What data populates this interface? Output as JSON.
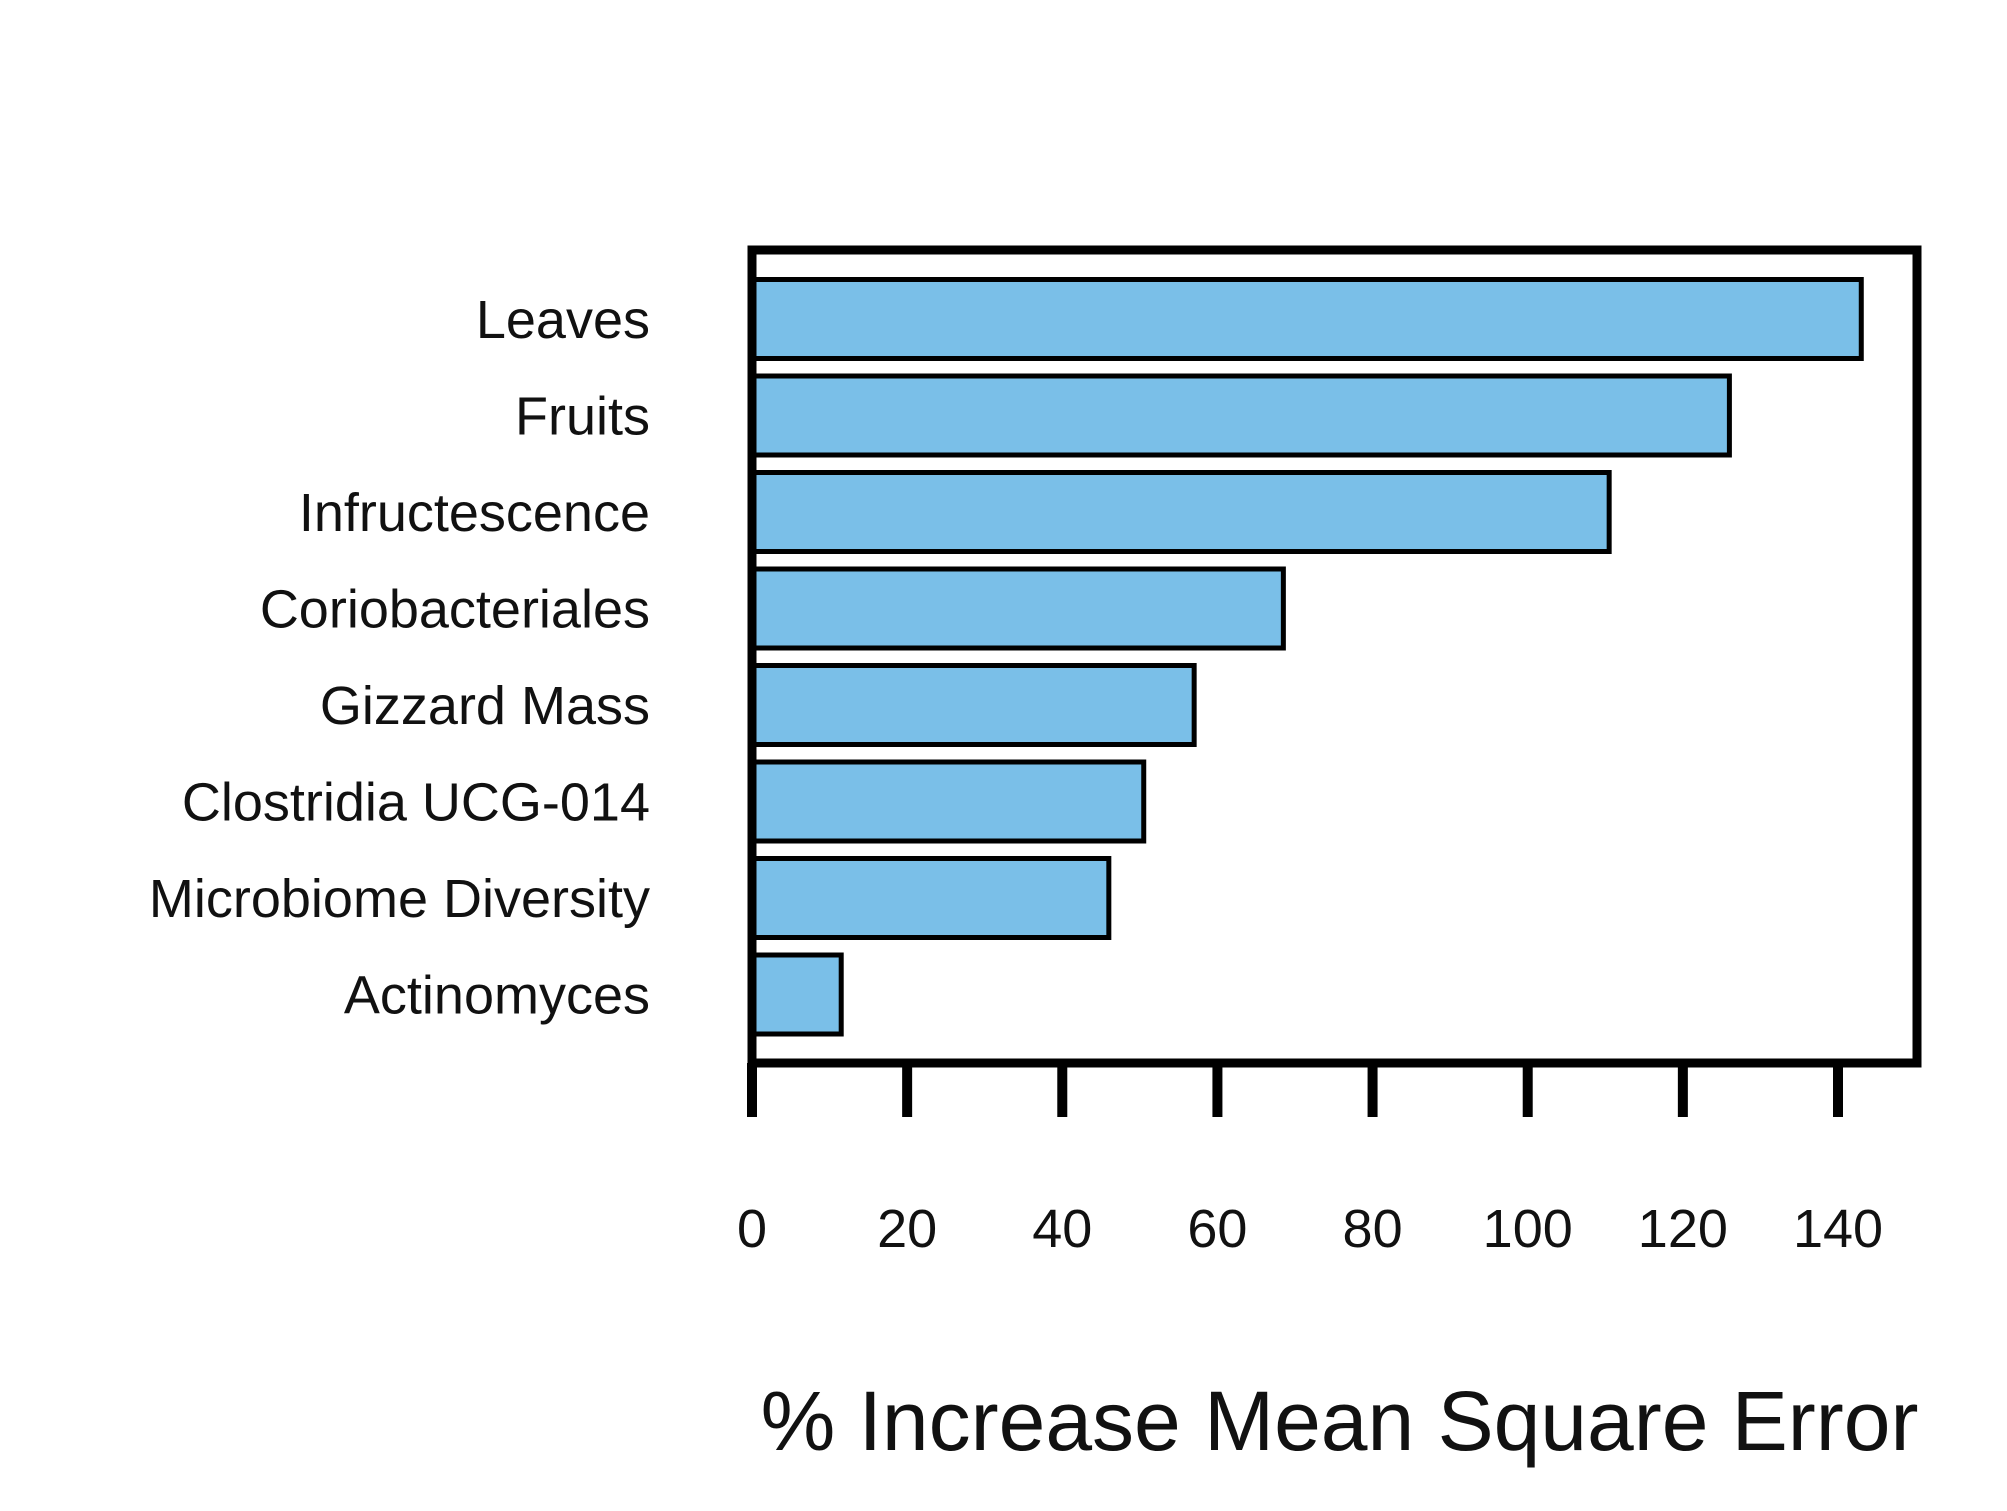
{
  "chart_data": {
    "type": "bar",
    "orientation": "horizontal",
    "categories": [
      "Leaves",
      "Fruits",
      "Infructescence",
      "Coriobacteriales",
      "Gizzard Mass",
      "Clostridia UCG-014",
      "Microbiome Diversity",
      "Actinomyces"
    ],
    "values": [
      143,
      126,
      110.5,
      68.5,
      57,
      50.5,
      46,
      11.5
    ],
    "xlabel": "% Increase Mean Square Error",
    "ylabel": "",
    "title": "",
    "xlim": [
      0,
      150
    ],
    "xticks": [
      0,
      20,
      40,
      60,
      80,
      100,
      120,
      140
    ],
    "bar_color": "#7abfe8",
    "edge_color": "#000000",
    "grid": false,
    "legend": "none"
  }
}
